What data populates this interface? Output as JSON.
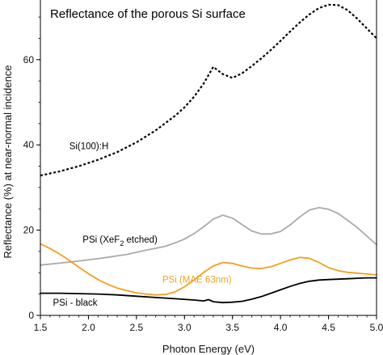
{
  "chart_data": {
    "type": "line",
    "title": "Reflectance of the porous Si surface",
    "xlabel": "Photon Energy (eV)",
    "ylabel": "Reflectance (%) at near-normal incidence",
    "xlim": [
      1.5,
      5.0
    ],
    "ylim": [
      0,
      74
    ],
    "xticks": [
      1.5,
      2.0,
      2.5,
      3.0,
      3.5,
      4.0,
      4.5,
      5.0
    ],
    "xtick_labels": [
      "1.5",
      "2.0",
      "2.5",
      "3.0",
      "3.5",
      "4.0",
      "4.5",
      "5.0"
    ],
    "yticks": [
      0,
      20,
      40,
      60
    ],
    "ytick_labels": [
      "0",
      "20",
      "40",
      "60"
    ],
    "grid": false,
    "legend": "none",
    "series": [
      {
        "name": "Si(100):H",
        "color": "#000000",
        "style": "dotted",
        "x": [
          1.5,
          1.7,
          1.9,
          2.1,
          2.3,
          2.5,
          2.7,
          2.9,
          3.0,
          3.1,
          3.2,
          3.3,
          3.4,
          3.5,
          3.6,
          3.7,
          3.8,
          3.9,
          4.0,
          4.1,
          4.2,
          4.3,
          4.4,
          4.5,
          4.6,
          4.7,
          4.8,
          4.9,
          5.0
        ],
        "y": [
          32.8,
          33.8,
          35.0,
          36.5,
          38.3,
          40.6,
          43.4,
          46.8,
          48.8,
          51.3,
          54.4,
          58.3,
          56.6,
          55.7,
          56.8,
          58.5,
          60.3,
          62.3,
          64.4,
          66.6,
          68.7,
          70.6,
          72.1,
          72.9,
          72.8,
          71.6,
          69.6,
          67.3,
          65.0
        ]
      },
      {
        "name": "PSi (XeF2 etched)",
        "color": "#aaaaaa",
        "style": "solid",
        "x": [
          1.5,
          1.8,
          2.1,
          2.4,
          2.6,
          2.8,
          2.9,
          3.0,
          3.1,
          3.2,
          3.3,
          3.4,
          3.5,
          3.6,
          3.7,
          3.8,
          3.9,
          4.0,
          4.1,
          4.2,
          4.3,
          4.4,
          4.5,
          4.6,
          4.7,
          4.8,
          4.9,
          5.0
        ],
        "y": [
          11.8,
          12.5,
          13.3,
          14.3,
          15.3,
          16.2,
          17.0,
          17.9,
          19.2,
          20.8,
          22.6,
          23.5,
          22.8,
          21.3,
          19.8,
          19.1,
          19.1,
          19.7,
          21.2,
          23.1,
          24.7,
          25.3,
          24.9,
          23.9,
          22.3,
          20.6,
          18.6,
          16.6
        ]
      },
      {
        "name": "PSi (MAE 63nm)",
        "color": "#f0a020",
        "style": "solid",
        "x": [
          1.5,
          1.6,
          1.7,
          1.8,
          1.9,
          2.0,
          2.1,
          2.2,
          2.3,
          2.4,
          2.5,
          2.6,
          2.7,
          2.8,
          2.9,
          3.0,
          3.1,
          3.2,
          3.3,
          3.4,
          3.5,
          3.6,
          3.7,
          3.8,
          3.9,
          4.0,
          4.1,
          4.2,
          4.3,
          4.4,
          4.5,
          4.6,
          4.7,
          4.8,
          4.9,
          5.0
        ],
        "y": [
          16.8,
          15.7,
          14.4,
          12.9,
          11.3,
          9.8,
          8.4,
          7.3,
          6.4,
          5.8,
          5.3,
          5.0,
          4.8,
          4.9,
          5.5,
          6.7,
          8.3,
          10.1,
          11.6,
          12.4,
          12.2,
          11.6,
          11.1,
          11.0,
          11.4,
          12.2,
          13.0,
          13.6,
          13.4,
          12.4,
          11.2,
          10.5,
          10.1,
          9.9,
          9.7,
          9.5
        ]
      },
      {
        "name": "PSi - black",
        "color": "#000000",
        "style": "solid",
        "x": [
          1.5,
          1.7,
          1.9,
          2.1,
          2.3,
          2.5,
          2.7,
          2.9,
          3.1,
          3.2,
          3.25,
          3.3,
          3.4,
          3.5,
          3.6,
          3.7,
          3.8,
          3.9,
          4.0,
          4.1,
          4.2,
          4.3,
          4.4,
          4.5,
          4.6,
          4.7,
          4.8,
          4.9,
          5.0
        ],
        "y": [
          5.2,
          5.2,
          5.1,
          5.0,
          4.8,
          4.5,
          4.2,
          3.9,
          3.6,
          3.4,
          3.7,
          3.2,
          3.0,
          3.1,
          3.3,
          3.8,
          4.4,
          5.2,
          6.0,
          6.8,
          7.5,
          8.0,
          8.3,
          8.4,
          8.5,
          8.6,
          8.7,
          8.8,
          8.8
        ]
      }
    ],
    "annotations": [
      {
        "text": "Si(100):H",
        "x": 1.8,
        "y": 39.0,
        "color": "#000000"
      },
      {
        "text": "PSi (XeF",
        "sub": "2",
        "rest": " etched)",
        "x": 1.94,
        "y": 17.1,
        "color": "#000000"
      },
      {
        "text": "PSi (MAE 63nm)",
        "x": 2.77,
        "y": 7.7,
        "color": "#f0a020"
      },
      {
        "text": "PSi - black",
        "x": 1.63,
        "y": 2.3,
        "color": "#000000"
      }
    ]
  }
}
